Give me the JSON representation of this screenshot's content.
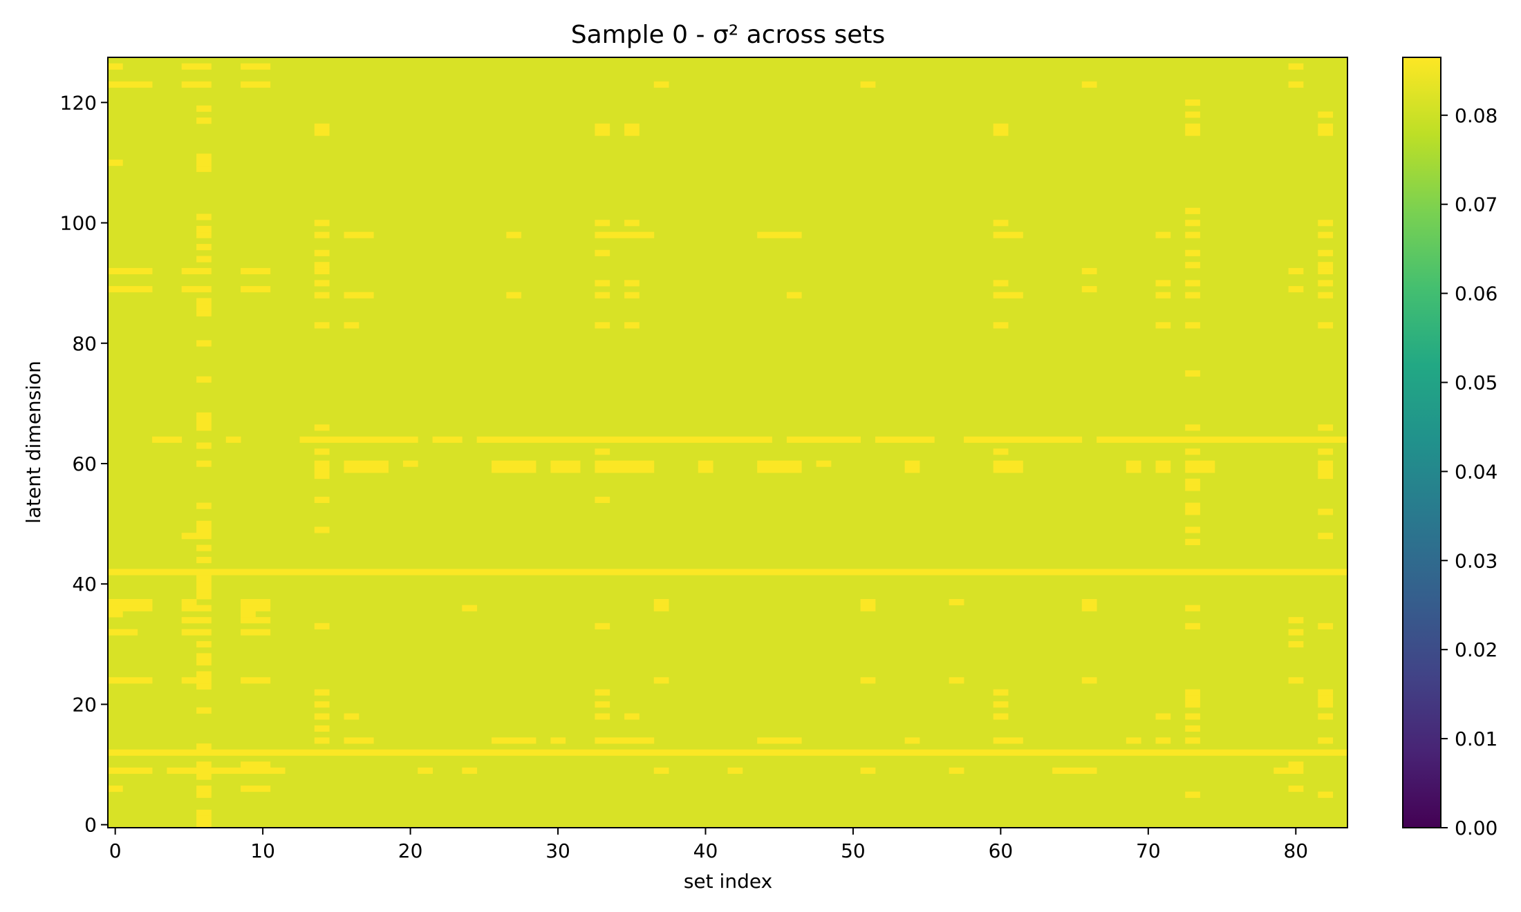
{
  "chart_data": {
    "type": "heatmap",
    "title": "Sample 0 - σ² across sets",
    "xlabel": "set index",
    "ylabel": "latent dimension",
    "n_cols": 84,
    "n_rows": 128,
    "x_ticks": [
      0,
      10,
      20,
      30,
      40,
      50,
      60,
      70,
      80
    ],
    "y_ticks": [
      0,
      20,
      40,
      60,
      80,
      100,
      120
    ],
    "x_tick_labels": [
      "0",
      "10",
      "20",
      "30",
      "40",
      "50",
      "60",
      "70",
      "80"
    ],
    "y_tick_labels": [
      "0",
      "20",
      "40",
      "60",
      "80",
      "100",
      "120"
    ],
    "xlim": [
      -0.5,
      83.5
    ],
    "ylim": [
      -0.5,
      127.5
    ],
    "y_origin": "lower",
    "colormap": "viridis",
    "colorbar": {
      "vmin": 0.0,
      "vmax": 0.0865,
      "ticks": [
        0.0,
        0.01,
        0.02,
        0.03,
        0.04,
        0.05,
        0.06,
        0.07,
        0.08
      ],
      "tick_labels": [
        "0.00",
        "0.01",
        "0.02",
        "0.03",
        "0.04",
        "0.05",
        "0.06",
        "0.07",
        "0.08"
      ]
    },
    "base_value": 0.0815,
    "high_value": 0.0862,
    "full_rows_high": [
      12,
      42
    ],
    "rows_mostly_high": {
      "64": [
        [
          3,
          4
        ],
        [
          8
        ],
        [
          13,
          20
        ],
        [
          22,
          23
        ],
        [
          25,
          44
        ],
        [
          46,
          50
        ],
        [
          52,
          55
        ],
        [
          58,
          65
        ],
        [
          67,
          83
        ]
      ]
    },
    "cols_sparse_high": {
      "0": [
        6,
        9,
        24,
        32,
        35,
        36,
        37,
        89,
        92,
        110,
        123,
        126
      ],
      "1": [
        9,
        24,
        32,
        36,
        37,
        89,
        92,
        123
      ],
      "2": [
        9,
        24,
        36,
        37,
        89,
        92,
        123
      ],
      "4": [
        9
      ],
      "5": [
        9,
        24,
        32,
        34,
        36,
        37,
        48,
        89,
        92,
        123,
        126
      ],
      "6": [
        0,
        1,
        2,
        5,
        6,
        8,
        9,
        10,
        13,
        19,
        23,
        24,
        25,
        27,
        28,
        30,
        32,
        34,
        36,
        38,
        39,
        40,
        41,
        44,
        46,
        48,
        49,
        50,
        53,
        60,
        63,
        66,
        67,
        68,
        74,
        80,
        85,
        86,
        87,
        89,
        92,
        94,
        96,
        98,
        99,
        101,
        109,
        110,
        111,
        117,
        119,
        123,
        126
      ],
      "7": [
        9
      ],
      "8": [
        9,
        64
      ],
      "9": [
        6,
        9,
        10,
        24,
        32,
        34,
        35,
        36,
        37,
        89,
        92,
        123,
        126
      ],
      "10": [
        6,
        9,
        10,
        24,
        32,
        34,
        36,
        37,
        89,
        92,
        123,
        126
      ],
      "11": [
        9
      ],
      "14": [
        14,
        16,
        18,
        20,
        22,
        33,
        49,
        54,
        58,
        59,
        60,
        62,
        66,
        83,
        88,
        90,
        92,
        93,
        95,
        98,
        100,
        115,
        116
      ],
      "16": [
        14,
        18,
        59,
        60,
        83,
        88,
        98
      ],
      "17": [
        14,
        59,
        60,
        88,
        98
      ],
      "18": [
        59,
        60
      ],
      "20": [
        60
      ],
      "21": [
        9
      ],
      "24": [
        9,
        36
      ],
      "26": [
        14,
        59,
        60
      ],
      "27": [
        14,
        59,
        60,
        88,
        98
      ],
      "28": [
        14,
        59,
        60
      ],
      "30": [
        14,
        59,
        60
      ],
      "31": [
        59,
        60
      ],
      "33": [
        14,
        18,
        20,
        22,
        33,
        54,
        59,
        60,
        62,
        83,
        88,
        90,
        95,
        98,
        100,
        115,
        116
      ],
      "34": [
        14,
        59,
        60,
        98
      ],
      "35": [
        14,
        18,
        59,
        60,
        83,
        88,
        90,
        98,
        100,
        115,
        116
      ],
      "36": [
        14,
        59,
        60,
        98
      ],
      "37": [
        9,
        24,
        36,
        37,
        123
      ],
      "40": [
        59,
        60
      ],
      "42": [
        9
      ],
      "44": [
        14,
        59,
        60,
        98
      ],
      "45": [
        14,
        59,
        60,
        98
      ],
      "46": [
        14,
        59,
        60,
        88,
        98
      ],
      "48": [
        60
      ],
      "51": [
        9,
        24,
        36,
        37,
        123
      ],
      "54": [
        14,
        59,
        60
      ],
      "57": [
        9,
        24,
        37
      ],
      "60": [
        14,
        18,
        20,
        22,
        59,
        60,
        62,
        83,
        88,
        90,
        98,
        100,
        115,
        116
      ],
      "61": [
        14,
        59,
        60,
        88,
        98
      ],
      "64": [
        9
      ],
      "65": [
        9
      ],
      "66": [
        9,
        24,
        36,
        37,
        89,
        92,
        123
      ],
      "69": [
        14,
        59,
        60
      ],
      "71": [
        14,
        18,
        59,
        60,
        83,
        88,
        90,
        98
      ],
      "73": [
        5,
        14,
        16,
        18,
        20,
        21,
        22,
        33,
        36,
        47,
        49,
        52,
        53,
        56,
        57,
        59,
        60,
        62,
        66,
        75,
        83,
        88,
        90,
        93,
        95,
        98,
        100,
        102,
        115,
        116,
        118,
        120
      ],
      "74": [
        59,
        60
      ],
      "79": [
        9
      ],
      "80": [
        6,
        9,
        10,
        24,
        30,
        32,
        34,
        89,
        92,
        123,
        126
      ],
      "82": [
        5,
        14,
        18,
        20,
        21,
        22,
        33,
        48,
        52,
        58,
        59,
        60,
        62,
        64,
        66,
        83,
        88,
        90,
        92,
        93,
        95,
        98,
        100,
        115,
        116,
        118
      ]
    }
  }
}
